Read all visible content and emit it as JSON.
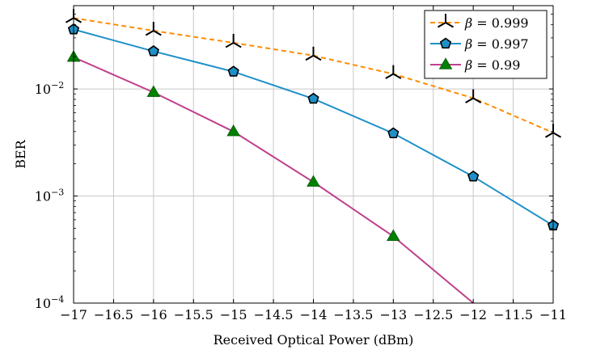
{
  "chart_data": {
    "type": "line",
    "xlabel": "Received Optical Power (dBm)",
    "ylabel": "BER",
    "xlim": [
      -17,
      -11
    ],
    "ylim": [
      0.0001,
      0.06
    ],
    "y_scale": "log",
    "grid": true,
    "legend_position": "top-right",
    "x_ticks": [
      -17,
      -16.5,
      -16,
      -15.5,
      -15,
      -14.5,
      -14,
      -13.5,
      -13,
      -12.5,
      -12,
      -11.5,
      -11
    ],
    "x_tick_labels": [
      "−17",
      "−16.5",
      "−16",
      "−15.5",
      "−15",
      "−14.5",
      "−14",
      "−13.5",
      "−13",
      "−12.5",
      "−12",
      "−11.5",
      "−11"
    ],
    "y_ticks": [
      {
        "value": 0.01,
        "base": "10",
        "exp": "−2"
      },
      {
        "value": 0.001,
        "base": "10",
        "exp": "−3"
      },
      {
        "value": 0.0001,
        "base": "10",
        "exp": "−4"
      }
    ],
    "x": [
      -17,
      -16,
      -15,
      -14,
      -13,
      -12,
      -11
    ],
    "series": [
      {
        "name": "β = 0.999",
        "legend_beta": "β",
        "legend_value": "= 0.999",
        "color": "#ff8c00",
        "marker_color": "#000000",
        "marker": "tri-star",
        "dashed": true,
        "values": [
          0.046,
          0.035,
          0.027,
          0.0205,
          0.0138,
          0.0082,
          0.0039
        ]
      },
      {
        "name": "β = 0.997",
        "legend_beta": "β",
        "legend_value": "= 0.997",
        "color": "#1e90c8",
        "marker_color": "#1e90c8",
        "marker": "pentagon",
        "dashed": false,
        "values": [
          0.036,
          0.0225,
          0.0145,
          0.0081,
          0.00385,
          0.00152,
          0.00053
        ]
      },
      {
        "name": "β = 0.99",
        "legend_beta": "β",
        "legend_value": "= 0.99",
        "color": "#c0408c",
        "marker_color": "#008000",
        "marker": "triangle",
        "dashed": false,
        "values": [
          0.0198,
          0.0093,
          0.004,
          0.00135,
          0.00042,
          0.0001,
          null
        ]
      }
    ]
  }
}
